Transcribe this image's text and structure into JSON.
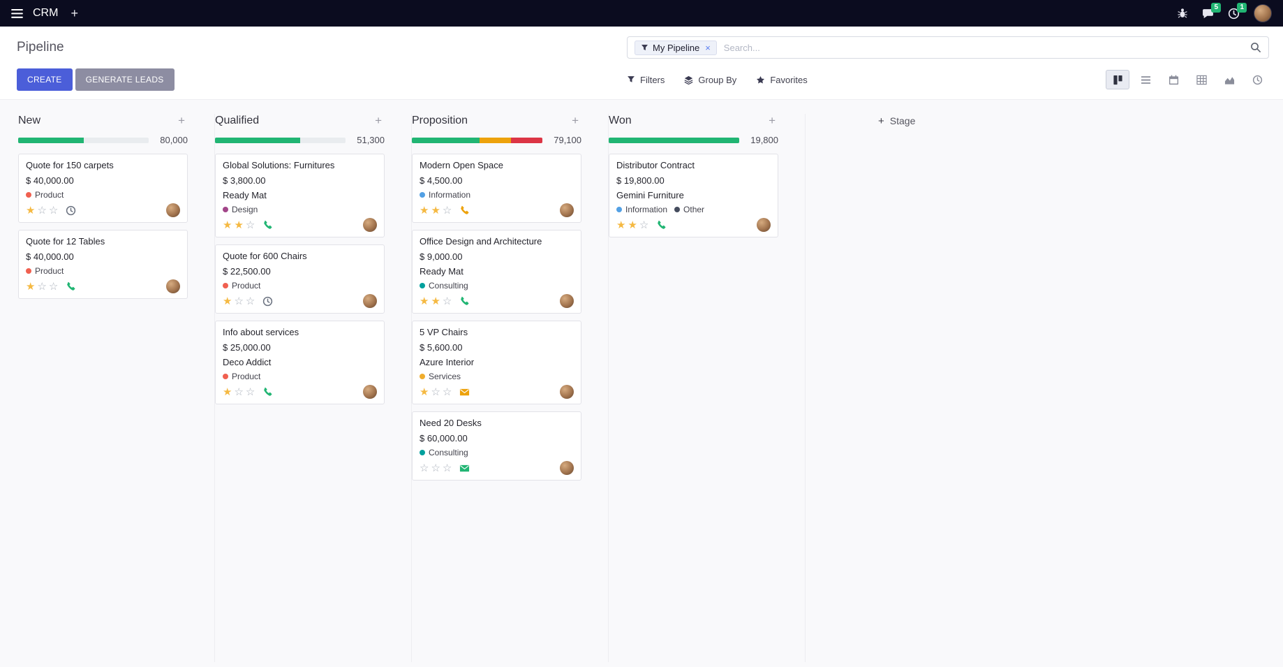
{
  "colors": {
    "accent": "#4b5ed9",
    "secondary_button": "#8d8da2",
    "navbar_bg": "#0b0c1f",
    "success_green": "#21b573",
    "warning_amber": "#eda20c",
    "danger_red": "#dc3545",
    "star_gold": "#f5b942"
  },
  "icons": {
    "plus": "+",
    "close": "×",
    "star_filled": "★",
    "star_empty": "☆"
  },
  "navbar": {
    "app_name": "CRM",
    "message_badge": "5",
    "activity_badge": "1"
  },
  "control_panel": {
    "title": "Pipeline",
    "create_label": "CREATE",
    "generate_label": "GENERATE LEADS",
    "search_facet": "My Pipeline",
    "search_placeholder": "Search...",
    "filters_label": "Filters",
    "group_by_label": "Group By",
    "favorites_label": "Favorites"
  },
  "kanban": {
    "add_stage_label": "Stage",
    "columns": [
      {
        "name": "New",
        "amount": "80,000",
        "progress": [
          {
            "color": "#21b573",
            "pct": 50
          }
        ],
        "cards": [
          {
            "title": "Quote for 150 carpets",
            "amount": "$ 40,000.00",
            "partner": "",
            "tags": [
              {
                "label": "Product",
                "color": "#f06050"
              }
            ],
            "stars": 1,
            "activity": {
              "icon": "clock",
              "color": "#6b7280"
            }
          },
          {
            "title": "Quote for 12 Tables",
            "amount": "$ 40,000.00",
            "partner": "",
            "tags": [
              {
                "label": "Product",
                "color": "#f06050"
              }
            ],
            "stars": 1,
            "activity": {
              "icon": "phone",
              "color": "#21b573"
            }
          }
        ]
      },
      {
        "name": "Qualified",
        "amount": "51,300",
        "progress": [
          {
            "color": "#21b573",
            "pct": 65
          }
        ],
        "cards": [
          {
            "title": "Global Solutions: Furnitures",
            "amount": "$ 3,800.00",
            "partner": "Ready Mat",
            "tags": [
              {
                "label": "Design",
                "color": "#a24689"
              }
            ],
            "stars": 2,
            "activity": {
              "icon": "phone",
              "color": "#21b573"
            }
          },
          {
            "title": "Quote for 600 Chairs",
            "amount": "$ 22,500.00",
            "partner": "",
            "tags": [
              {
                "label": "Product",
                "color": "#f06050"
              }
            ],
            "stars": 1,
            "activity": {
              "icon": "clock",
              "color": "#6b7280"
            }
          },
          {
            "title": "Info about services",
            "amount": "$ 25,000.00",
            "partner": "Deco Addict",
            "tags": [
              {
                "label": "Product",
                "color": "#f06050"
              }
            ],
            "stars": 1,
            "activity": {
              "icon": "phone",
              "color": "#21b573"
            }
          }
        ]
      },
      {
        "name": "Proposition",
        "amount": "79,100",
        "progress": [
          {
            "color": "#21b573",
            "pct": 52
          },
          {
            "color": "#eda20c",
            "pct": 24
          },
          {
            "color": "#dc3545",
            "pct": 24
          }
        ],
        "cards": [
          {
            "title": "Modern Open Space",
            "amount": "$ 4,500.00",
            "partner": "",
            "tags": [
              {
                "label": "Information",
                "color": "#53a0e4"
              }
            ],
            "stars": 2,
            "activity": {
              "icon": "phone",
              "color": "#eda20c"
            }
          },
          {
            "title": "Office Design and Architecture",
            "amount": "$ 9,000.00",
            "partner": "Ready Mat",
            "tags": [
              {
                "label": "Consulting",
                "color": "#00a09d"
              }
            ],
            "stars": 2,
            "activity": {
              "icon": "phone",
              "color": "#21b573"
            }
          },
          {
            "title": "5 VP Chairs",
            "amount": "$ 5,600.00",
            "partner": "Azure Interior",
            "tags": [
              {
                "label": "Services",
                "color": "#f0ad2d"
              }
            ],
            "stars": 1,
            "activity": {
              "icon": "envelope",
              "color": "#eda20c"
            }
          },
          {
            "title": "Need 20 Desks",
            "amount": "$ 60,000.00",
            "partner": "",
            "tags": [
              {
                "label": "Consulting",
                "color": "#00a09d"
              }
            ],
            "stars": 0,
            "activity": {
              "icon": "envelope",
              "color": "#21b573"
            }
          }
        ]
      },
      {
        "name": "Won",
        "amount": "19,800",
        "progress": [
          {
            "color": "#21b573",
            "pct": 100
          }
        ],
        "cards": [
          {
            "title": "Distributor Contract",
            "amount": "$ 19,800.00",
            "partner": "Gemini Furniture",
            "tags": [
              {
                "label": "Information",
                "color": "#53a0e4"
              },
              {
                "label": "Other",
                "color": "#454c5e"
              }
            ],
            "stars": 2,
            "activity": {
              "icon": "phone",
              "color": "#21b573"
            }
          }
        ]
      }
    ]
  }
}
